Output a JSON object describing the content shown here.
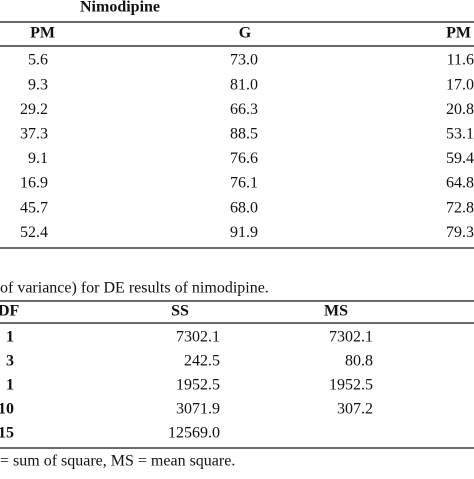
{
  "table1": {
    "title": "Nimodipine",
    "header": [
      "PM",
      "G",
      "PM"
    ],
    "rows": [
      [
        "5.6",
        "73.0",
        "11.6"
      ],
      [
        "9.3",
        "81.0",
        "17.0"
      ],
      [
        "29.2",
        "66.3",
        "20.8"
      ],
      [
        "37.3",
        "88.5",
        "53.1"
      ],
      [
        "9.1",
        "76.6",
        "59.4"
      ],
      [
        "16.9",
        "76.1",
        "64.8"
      ],
      [
        "45.7",
        "68.0",
        "72.8"
      ],
      [
        "52.4",
        "91.9",
        "79.3"
      ]
    ]
  },
  "table2": {
    "caption": "of variance) for DE results of nimodipine.",
    "header": [
      "DF",
      "SS",
      "MS"
    ],
    "rows": [
      [
        "1",
        "7302.1",
        "7302.1"
      ],
      [
        "3",
        "242.5",
        "80.8"
      ],
      [
        "1",
        "1952.5",
        "1952.5"
      ],
      [
        "10",
        "3071.9",
        "307.2"
      ],
      [
        "15",
        "12569.0"
      ]
    ],
    "footnote": "= sum of square, MS = mean square."
  }
}
